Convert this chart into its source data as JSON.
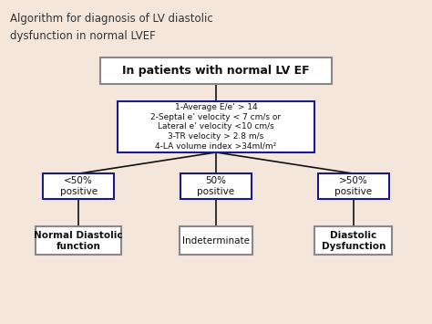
{
  "title_line1": "Algorithm for diagnosis of LV diastolic",
  "title_line2": "dysfunction in normal LVEF",
  "background_color": "#f5e6dc",
  "main_box_text": "In patients with normal LV EF",
  "criteria_box_text": "1-Average E/e’ > 14\n2-Septal e’ velocity < 7 cm/s or\nLateral e’ velocity <10 cm/s\n3-TR velocity > 2.8 m/s\n4-LA volume index >34ml/m²",
  "left_box_text": "<50%\npositive",
  "center_box_text": "50%\npositive",
  "right_box_text": ">50%\npositive",
  "left_result_text": "Normal Diastolic\nfunction",
  "center_result_text": "Indeterminate",
  "right_result_text": "Diastolic\nDysfunction",
  "box_border_color_blue": "#1a1a8c",
  "box_border_color_gray": "#888888",
  "box_fill_white": "#ffffff",
  "text_color_dark": "#222222",
  "line_color": "#111111"
}
